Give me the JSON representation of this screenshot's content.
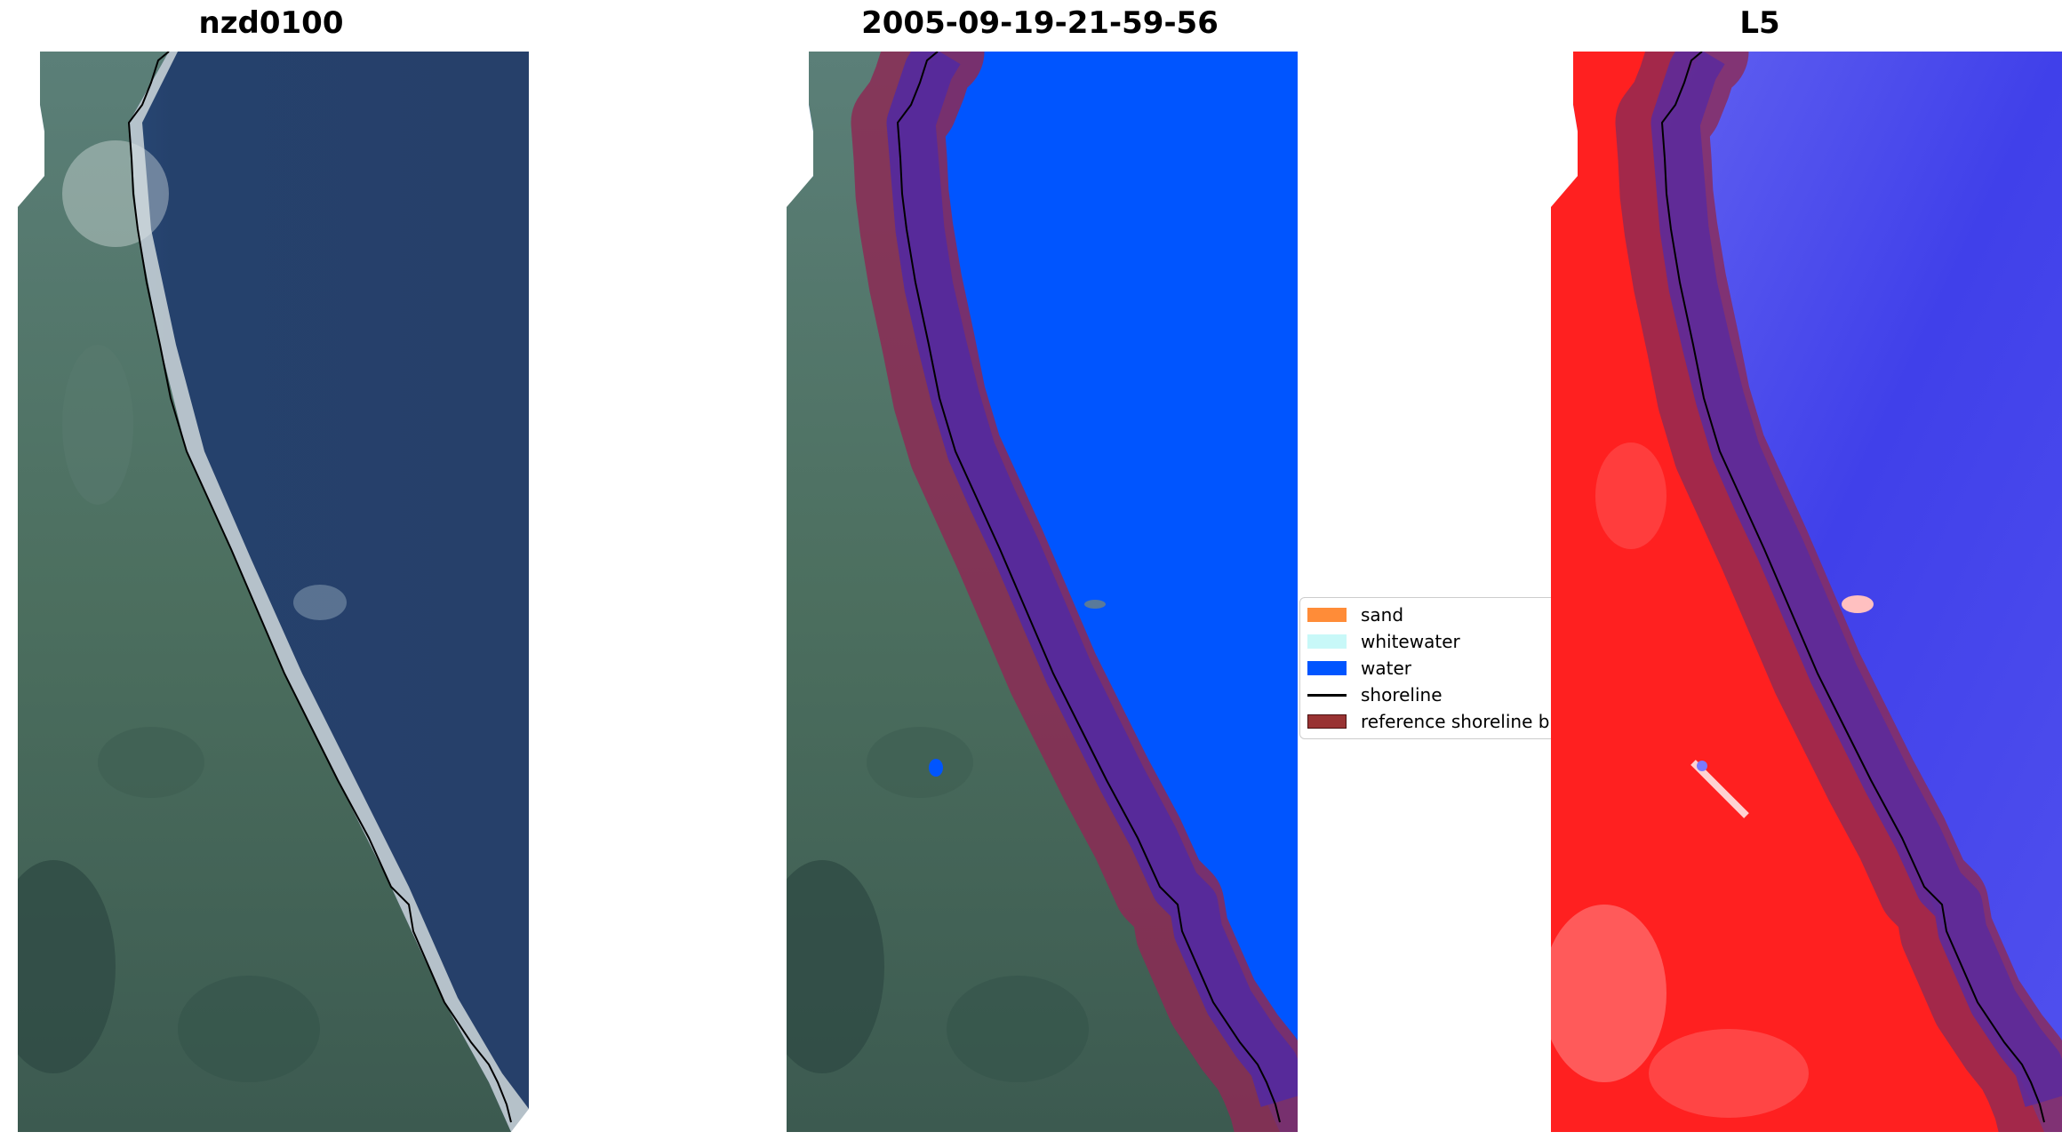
{
  "panels": [
    {
      "title": "nzd0100"
    },
    {
      "title": "2005-09-19-21-59-56"
    },
    {
      "title": "L5"
    }
  ],
  "legend": {
    "items": [
      {
        "label": "sand",
        "color": "#ff8c38",
        "kind": "patch"
      },
      {
        "label": "whitewater",
        "color": "#c8f8f8",
        "kind": "patch"
      },
      {
        "label": "water",
        "color": "#0055ff",
        "kind": "patch"
      },
      {
        "label": "shoreline",
        "color": "#000000",
        "kind": "line"
      },
      {
        "label": "reference shoreline b",
        "color": "#993333",
        "kind": "patch"
      }
    ]
  },
  "colors": {
    "sea_dark": "#26416a",
    "land_green": "#4e7063",
    "beach_white": "#e6ece9",
    "water_class": "#0055ff",
    "buffer": "#8c2a55",
    "index_land_red": "#ff2020",
    "index_water_blue": "#3838e8"
  }
}
